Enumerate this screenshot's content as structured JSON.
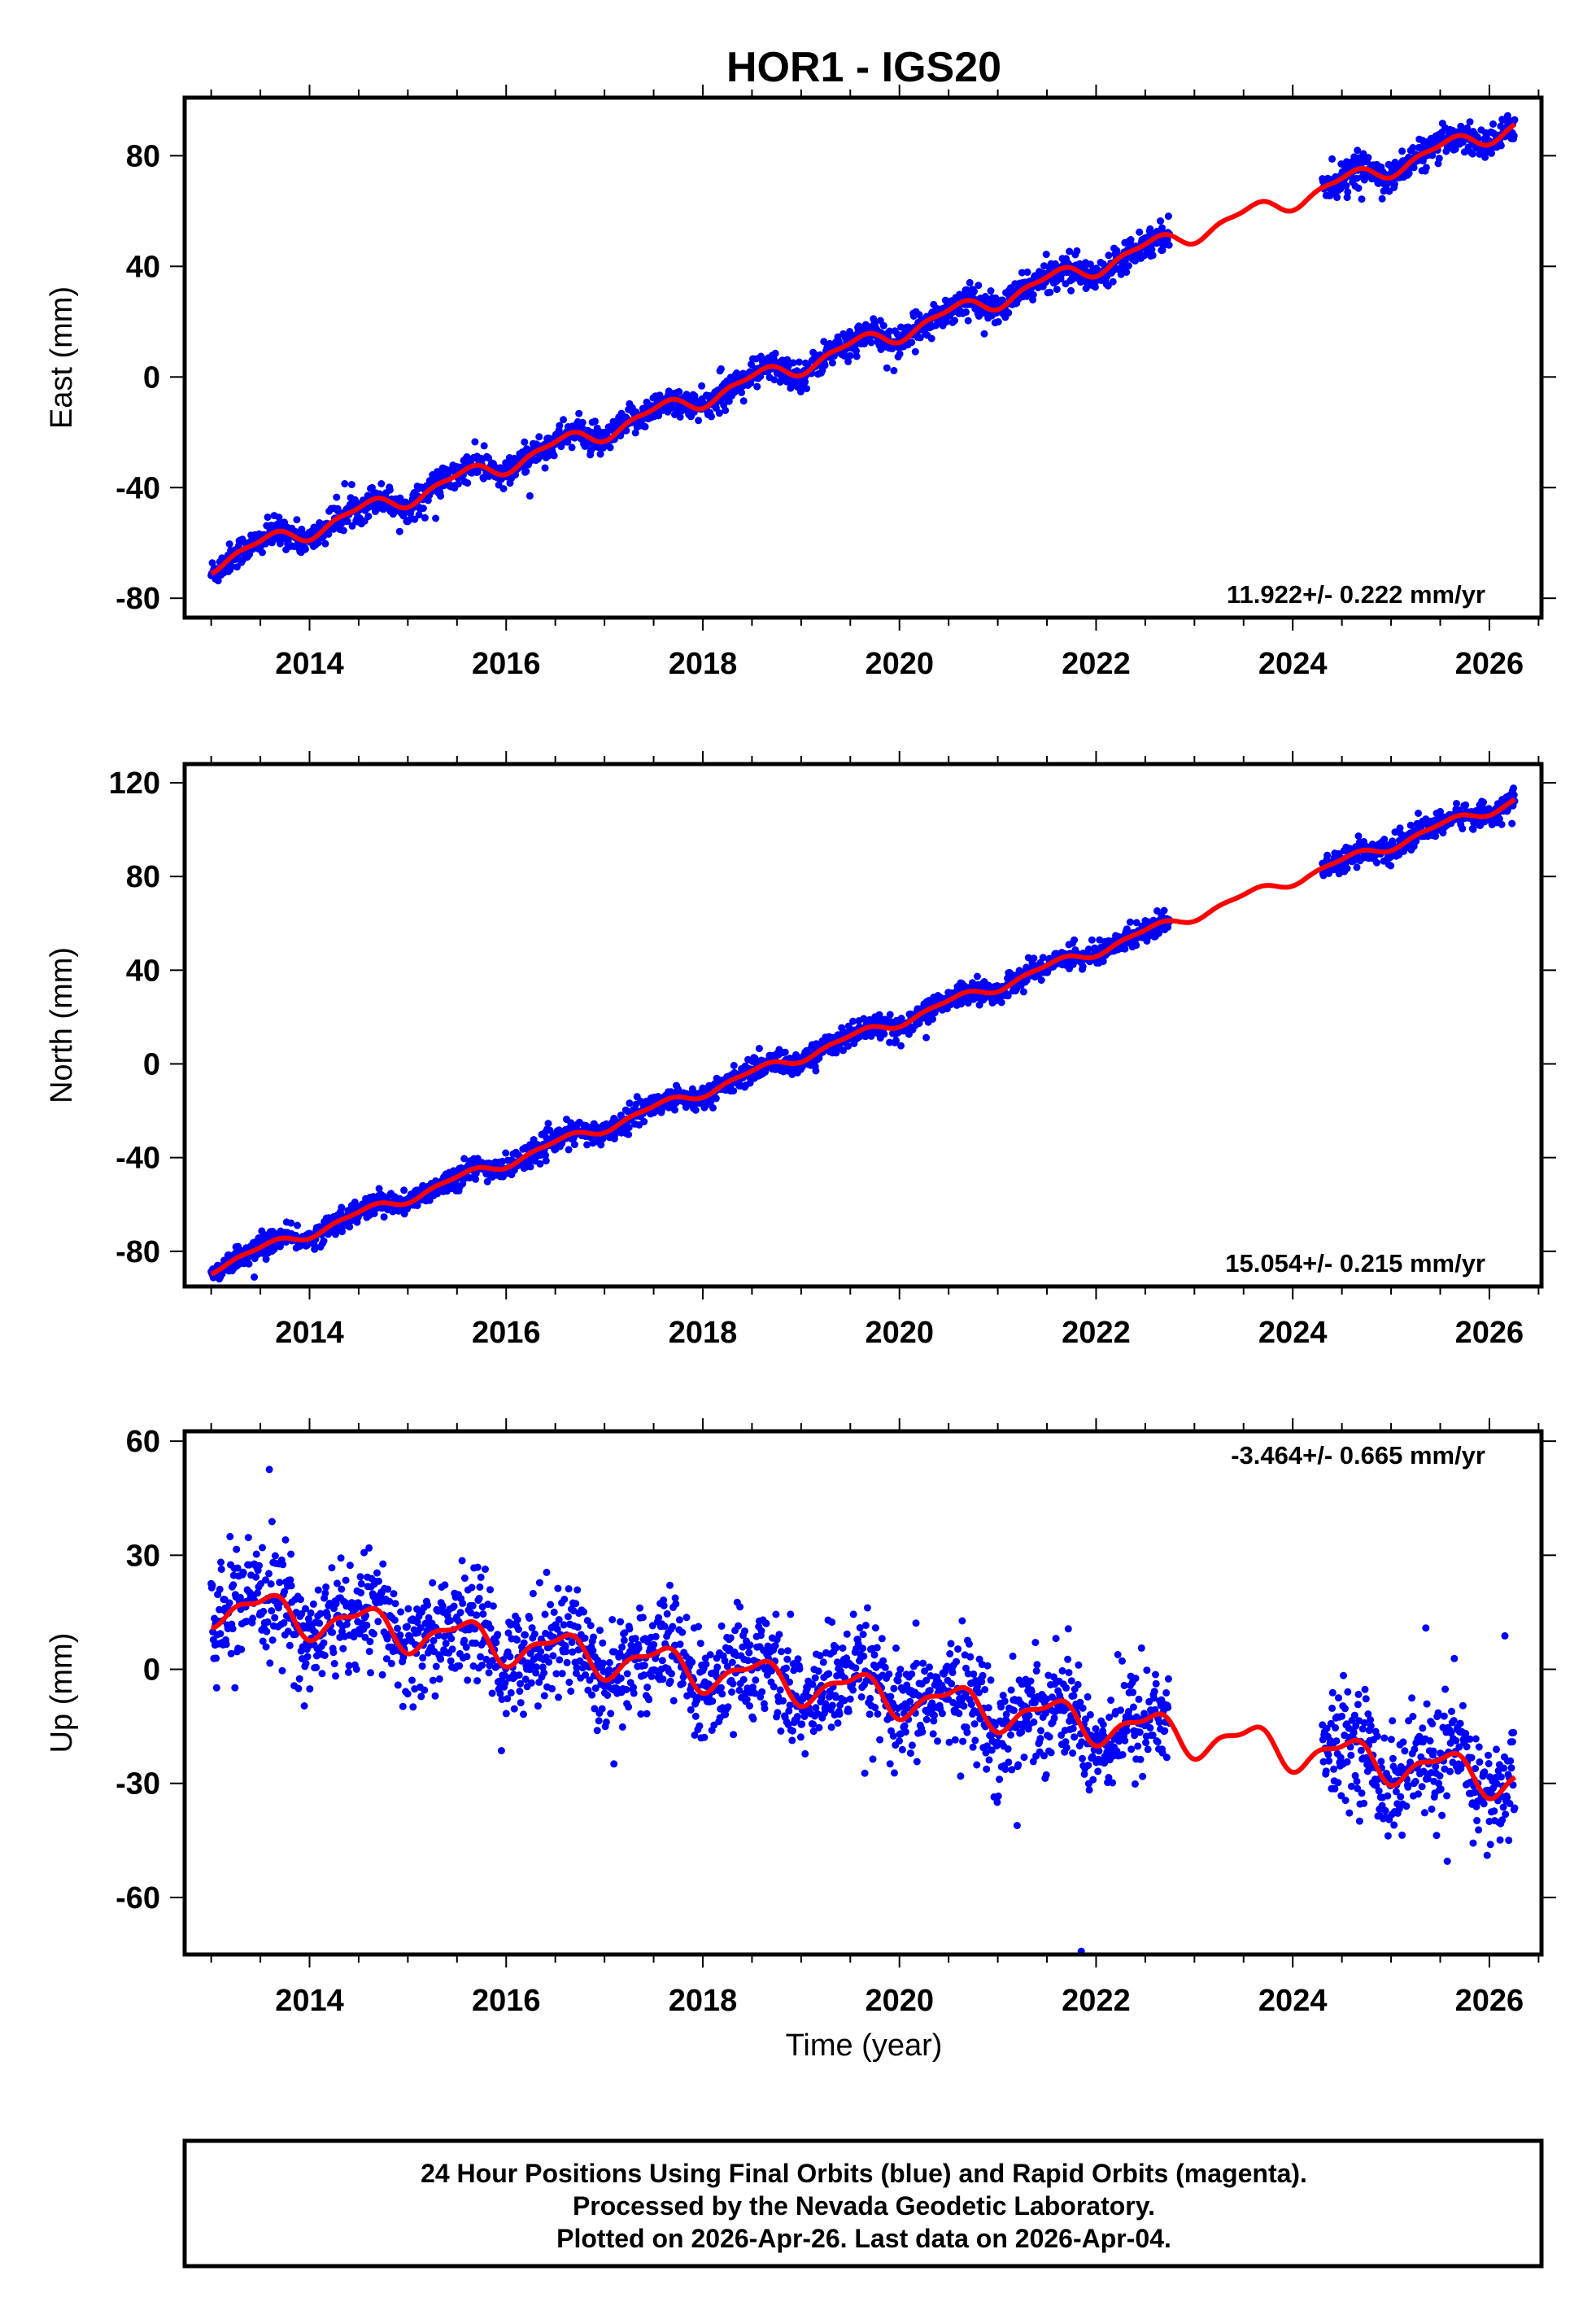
{
  "chart_data": {
    "type": "scatter",
    "title": "HOR1 - IGS20",
    "xlabel": "Time (year)",
    "xlim": [
      2012.73,
      2026.53
    ],
    "xticks": [
      "2014",
      "2016",
      "2018",
      "2020",
      "2022",
      "2024",
      "2026"
    ],
    "data_start": 2013.0,
    "data_end": 2026.26,
    "data_gap": [
      2022.75,
      2024.3
    ],
    "colors": {
      "points": "#0000ff",
      "fit": "#ff0000"
    },
    "panels": [
      {
        "name": "east",
        "ylabel": "East (mm)",
        "ylim": [
          -87,
          101
        ],
        "yticks": [
          "80",
          "40",
          "0",
          "-40",
          "-80"
        ],
        "ytick_values": [
          80,
          40,
          0,
          -40,
          -80
        ],
        "rate_label": "11.922+/- 0.222 mm/yr",
        "rate": 11.922,
        "value_at_2013": -67,
        "seasonal_amplitude": 3,
        "noise_sd": 2.6,
        "rate_position": "bottom-right"
      },
      {
        "name": "north",
        "ylabel": "North (mm)",
        "ylim": [
          -95,
          128
        ],
        "yticks": [
          "120",
          "80",
          "40",
          "0",
          "-40",
          "-80"
        ],
        "ytick_values": [
          120,
          80,
          40,
          0,
          -40,
          -80
        ],
        "rate_label": "15.054+/- 0.215 mm/yr",
        "rate": 15.054,
        "value_at_2013": -87,
        "seasonal_amplitude": 2,
        "noise_sd": 2.4,
        "rate_position": "bottom-right"
      },
      {
        "name": "up",
        "ylabel": "Up (mm)",
        "ylim": [
          -75,
          62.6
        ],
        "yticks": [
          "60",
          "30",
          "0",
          "-30",
          "-60"
        ],
        "ytick_values": [
          60,
          30,
          0,
          -30,
          -60
        ],
        "rate_label": "-3.464+/- 0.665 mm/yr",
        "rate": -3.464,
        "value_at_2013": 17,
        "seasonal_amplitude": 4.5,
        "noise_sd": 7,
        "rate_position": "top-right"
      }
    ]
  },
  "footer": {
    "line1": "24 Hour Positions Using Final Orbits (blue) and Rapid Orbits (magenta).",
    "line2": "Processed by the Nevada Geodetic Laboratory.",
    "line3": "Plotted on 2026-Apr-26. Last data on 2026-Apr-04."
  }
}
